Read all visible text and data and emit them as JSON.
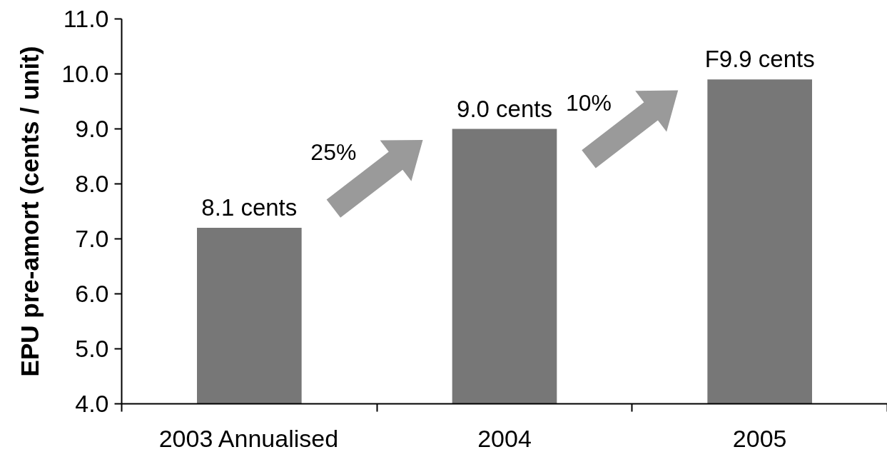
{
  "chart_data": {
    "type": "bar",
    "ylabel": "EPU pre-amort (cents / unit)",
    "categories": [
      "2003 Annualised",
      "2004",
      "2005"
    ],
    "values": [
      7.2,
      9.0,
      9.9
    ],
    "value_labels": [
      null,
      "9.0 cents",
      "F9.9 cents"
    ],
    "color": "#777777",
    "ylim": [
      4,
      11
    ],
    "yticks": [
      {
        "value": 4,
        "label": "4.0"
      },
      {
        "value": 5,
        "label": "5.0"
      },
      {
        "value": 6,
        "label": "6.0"
      },
      {
        "value": 7,
        "label": "7.0"
      },
      {
        "value": 8,
        "label": "8.0"
      },
      {
        "value": 9,
        "label": "9.0"
      },
      {
        "value": 10,
        "label": "10.0"
      },
      {
        "value": 11,
        "label": "11.0"
      }
    ],
    "annotations": [
      "25%",
      "10%",
      {
        "text": "8.1 cents",
        "x": "2003 Annualised",
        "y": 7.2
      }
    ]
  }
}
